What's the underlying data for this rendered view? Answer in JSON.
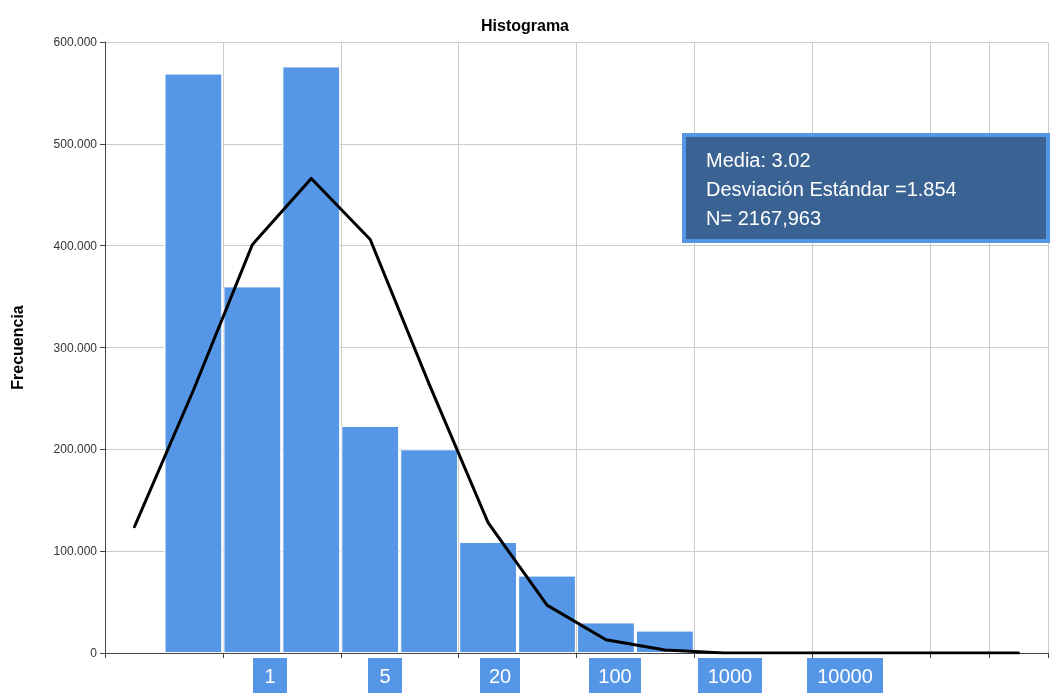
{
  "chart_data": {
    "type": "bar",
    "title": "Histograma",
    "ylabel": "Frecuencia",
    "categories": [
      null,
      null,
      null,
      null,
      null,
      null,
      null,
      null,
      null,
      null,
      null,
      null,
      null,
      null,
      null,
      null
    ],
    "series": [
      {
        "color": "#5596e6",
        "values": [
          null,
          569,
          360,
          576,
          223,
          200,
          109,
          76,
          30,
          22,
          null,
          null,
          null,
          null,
          null,
          null
        ]
      },
      {
        "type": "line",
        "color": "#000000",
        "values": [
          124,
          258,
          401,
          466,
          406,
          264,
          128,
          47,
          13,
          3,
          0,
          0,
          0,
          0,
          0,
          0
        ]
      }
    ],
    "ylim": [
      0,
      600
    ],
    "yticks": [
      0,
      {
        "value": 100,
        "label": "100.000"
      },
      {
        "value": 200,
        "label": "200.000"
      },
      {
        "value": 300,
        "label": "300.000"
      },
      {
        "value": 400,
        "label": "400.000"
      },
      {
        "value": 500,
        "label": "500.000"
      },
      {
        "value": 600,
        "label": "600.000"
      }
    ],
    "tick_labels": "y",
    "grid": true,
    "marker": "none",
    "line_style": "solid",
    "annotations": [
      "Media: 3.02",
      "Desviación Estándar =1.854",
      "N= 2167,963",
      {
        "text": "1"
      },
      {
        "text": "5"
      },
      {
        "text": "20"
      },
      {
        "text": "100"
      },
      {
        "text": "1000"
      },
      {
        "text": "10000"
      }
    ]
  }
}
